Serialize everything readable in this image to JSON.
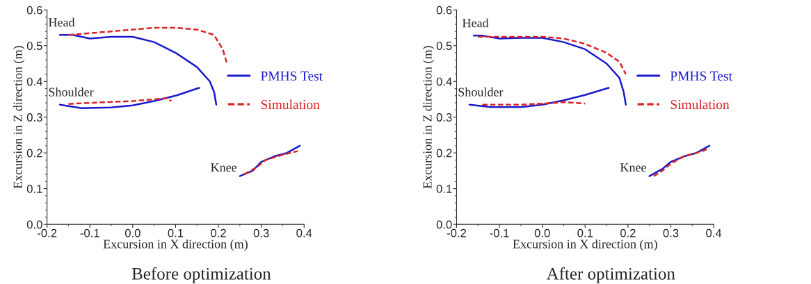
{
  "chart_data": [
    {
      "type": "line",
      "title": "Before optimization",
      "xlabel": "Excursion in X direction (m)",
      "ylabel": "Excursion in Z direction (m)",
      "xlim": [
        -0.2,
        0.4
      ],
      "xticks": [
        -0.2,
        -0.1,
        {
          "value": 0.0,
          "label": "0.0"
        },
        0.1,
        0.2,
        0.3,
        0.4
      ],
      "ylim": [
        0.0,
        0.6
      ],
      "yticks": [
        {
          "value": 0.0,
          "label": "0.0"
        },
        0.1,
        0.2,
        0.3,
        0.4,
        0.5,
        0.6
      ],
      "grid": false,
      "legend": "right",
      "marker": "none",
      "series": [
        {
          "name": "PMHS Test",
          "color": "#1a1acc",
          "line_style": "solid",
          "x": [
            -0.17,
            -0.14,
            -0.1,
            -0.05,
            0.0,
            0.05,
            0.1,
            0.15,
            0.18,
            0.19,
            0.195
          ],
          "values": [
            0.53,
            0.53,
            0.52,
            0.525,
            0.525,
            0.51,
            0.48,
            0.44,
            0.4,
            0.37,
            0.335
          ]
        },
        {
          "color": "#dd2222",
          "line_style": "dashed",
          "x": [
            -0.15,
            -0.1,
            -0.05,
            0.0,
            0.05,
            0.1,
            0.15,
            0.19,
            0.21,
            0.22
          ],
          "values": [
            0.53,
            0.535,
            0.54,
            0.545,
            0.55,
            0.55,
            0.545,
            0.53,
            0.49,
            0.45
          ]
        },
        {
          "color": "#1a1acc",
          "line_style": "solid",
          "x": [
            -0.17,
            -0.12,
            -0.05,
            0.0,
            0.05,
            0.1,
            0.155
          ],
          "values": [
            0.335,
            0.325,
            0.327,
            0.333,
            0.345,
            0.36,
            0.382
          ]
        },
        {
          "name": "Simulation",
          "color": "#dd2222",
          "line_style": "dashed",
          "x": [
            -0.15,
            -0.1,
            0.0,
            0.05,
            0.08,
            0.09
          ],
          "values": [
            0.337,
            0.34,
            0.345,
            0.35,
            0.353,
            0.345
          ]
        },
        {
          "color": "#1a1acc",
          "line_style": "solid",
          "x": [
            0.25,
            0.28,
            0.3,
            0.33,
            0.36,
            0.39
          ],
          "values": [
            0.135,
            0.15,
            0.175,
            0.19,
            0.2,
            0.22
          ]
        },
        {
          "color": "#dd2222",
          "line_style": "dashed",
          "x": [
            0.26,
            0.29,
            0.31,
            0.35,
            0.385
          ],
          "values": [
            0.14,
            0.16,
            0.18,
            0.195,
            0.205
          ]
        }
      ],
      "annotations": [
        "Head",
        "Shoulder",
        "Knee"
      ]
    },
    {
      "type": "line",
      "title": "After optimization",
      "xlabel": "Excursion in X direction (m)",
      "ylabel": "Excursion in Z direction (m)",
      "xlim": [
        -0.2,
        0.4
      ],
      "xticks": [
        -0.2,
        -0.1,
        {
          "value": 0.0,
          "label": "0.0"
        },
        0.1,
        0.2,
        0.3,
        0.4
      ],
      "ylim": [
        0.0,
        0.6
      ],
      "yticks": [
        {
          "value": 0.0,
          "label": "0.0"
        },
        0.1,
        0.2,
        0.3,
        0.4,
        0.5,
        0.6
      ],
      "grid": false,
      "legend": "right",
      "marker": "none",
      "series": [
        {
          "name": "PMHS Test",
          "color": "#1a1acc",
          "line_style": "solid",
          "x": [
            -0.16,
            -0.14,
            -0.1,
            -0.05,
            0.0,
            0.05,
            0.1,
            0.15,
            0.18,
            0.19,
            0.195
          ],
          "values": [
            0.528,
            0.528,
            0.52,
            0.522,
            0.522,
            0.51,
            0.49,
            0.45,
            0.41,
            0.37,
            0.335
          ]
        },
        {
          "color": "#dd2222",
          "line_style": "dashed",
          "x": [
            -0.15,
            -0.1,
            -0.05,
            0.0,
            0.05,
            0.1,
            0.15,
            0.18,
            0.195
          ],
          "values": [
            0.525,
            0.525,
            0.525,
            0.525,
            0.52,
            0.505,
            0.48,
            0.455,
            0.42
          ]
        },
        {
          "color": "#1a1acc",
          "line_style": "solid",
          "x": [
            -0.17,
            -0.12,
            -0.05,
            0.0,
            0.05,
            0.1,
            0.155
          ],
          "values": [
            0.335,
            0.328,
            0.328,
            0.335,
            0.347,
            0.362,
            0.382
          ]
        },
        {
          "name": "Simulation",
          "color": "#dd2222",
          "line_style": "dashed",
          "x": [
            -0.14,
            -0.05,
            0.0,
            0.05,
            0.1
          ],
          "values": [
            0.335,
            0.335,
            0.338,
            0.342,
            0.338
          ]
        },
        {
          "color": "#1a1acc",
          "line_style": "solid",
          "x": [
            0.25,
            0.28,
            0.3,
            0.33,
            0.36,
            0.39
          ],
          "values": [
            0.135,
            0.155,
            0.175,
            0.19,
            0.2,
            0.22
          ]
        },
        {
          "color": "#dd2222",
          "line_style": "dashed",
          "x": [
            0.26,
            0.28,
            0.3,
            0.33,
            0.36,
            0.385
          ],
          "values": [
            0.135,
            0.15,
            0.17,
            0.19,
            0.2,
            0.21
          ]
        }
      ],
      "annotations": [
        "Head",
        "Shoulder",
        "Knee"
      ]
    }
  ]
}
